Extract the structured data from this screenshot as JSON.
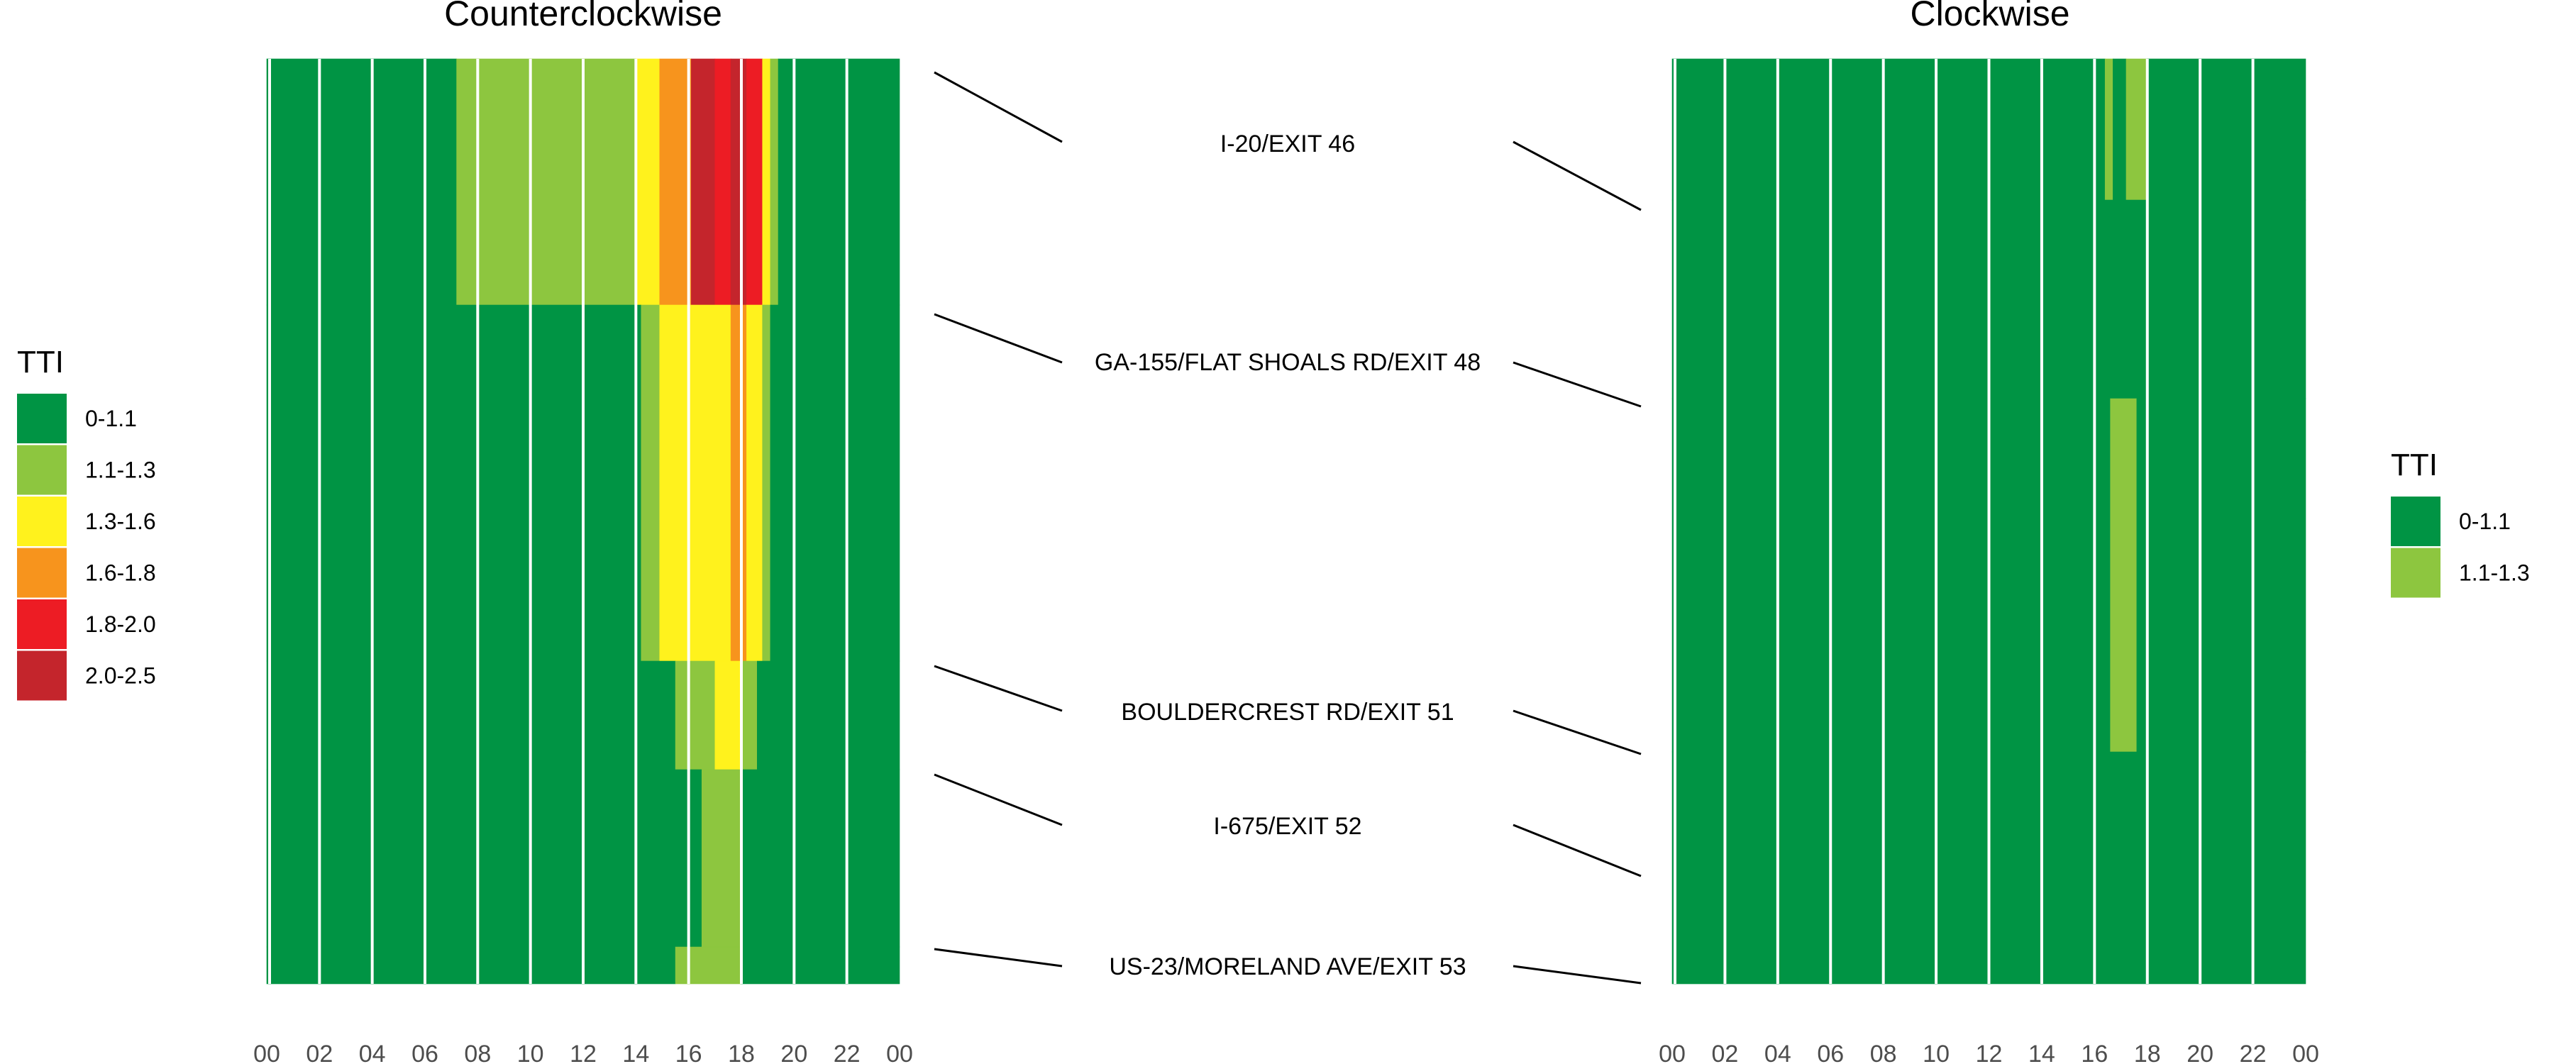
{
  "chart_data": [
    {
      "type": "heatmap",
      "title": "Counterclockwise",
      "xlabel": "",
      "ylabel": "",
      "x_ticks": [
        "00",
        "02",
        "04",
        "06",
        "08",
        "10",
        "12",
        "14",
        "16",
        "18",
        "20",
        "22",
        "00"
      ],
      "xlim": [
        0,
        24
      ],
      "legend": {
        "title": "TTI",
        "position": "left",
        "items": [
          {
            "label": "0-1.1",
            "color": "#009444"
          },
          {
            "label": "1.1-1.3",
            "color": "#8dc63f"
          },
          {
            "label": "1.3-1.6",
            "color": "#fff21d"
          },
          {
            "label": "1.6-1.8",
            "color": "#f7941d"
          },
          {
            "label": "1.8-2.0",
            "color": "#ed1c24"
          },
          {
            "label": "2.0-2.5",
            "color": "#c4252c"
          }
        ]
      },
      "rows": [
        {
          "segment": "I-20/EXIT 46 to GA-155/FLAT SHOALS RD/EXIT 48",
          "cells": [
            [
              0,
              7.2,
              "0-1.1"
            ],
            [
              7.2,
              14.0,
              "1.1-1.3"
            ],
            [
              14.0,
              14.9,
              "1.3-1.6"
            ],
            [
              14.9,
              16.1,
              "1.6-1.8"
            ],
            [
              16.1,
              17.0,
              "2.0-2.5"
            ],
            [
              17.0,
              17.6,
              "1.8-2.0"
            ],
            [
              17.6,
              18.2,
              "2.0-2.5"
            ],
            [
              18.2,
              18.8,
              "1.8-2.0"
            ],
            [
              18.8,
              19.1,
              "1.3-1.6"
            ],
            [
              19.1,
              19.4,
              "1.1-1.3"
            ],
            [
              19.4,
              24,
              "0-1.1"
            ]
          ]
        },
        {
          "segment": "GA-155/FLAT SHOALS RD/EXIT 48 to BOULDERCREST RD/EXIT 51",
          "cells": [
            [
              0,
              14.2,
              "0-1.1"
            ],
            [
              14.2,
              14.9,
              "1.1-1.3"
            ],
            [
              14.9,
              17.6,
              "1.3-1.6"
            ],
            [
              17.6,
              18.2,
              "1.6-1.8"
            ],
            [
              18.2,
              18.8,
              "1.3-1.6"
            ],
            [
              18.8,
              19.1,
              "1.1-1.3"
            ],
            [
              19.1,
              24,
              "0-1.1"
            ]
          ]
        },
        {
          "segment": "BOULDERCREST RD/EXIT 51 to I-675/EXIT 52",
          "cells": [
            [
              0,
              15.5,
              "0-1.1"
            ],
            [
              15.5,
              17.0,
              "1.1-1.3"
            ],
            [
              17.0,
              18.0,
              "1.3-1.6"
            ],
            [
              18.0,
              18.6,
              "1.1-1.3"
            ],
            [
              18.6,
              24,
              "0-1.1"
            ]
          ]
        },
        {
          "segment": "I-675/EXIT 52 to US-23/MORELAND AVE/EXIT 53",
          "cells": [
            [
              0,
              16.5,
              "0-1.1"
            ],
            [
              16.5,
              18.0,
              "1.1-1.3"
            ],
            [
              18.0,
              24,
              "0-1.1"
            ]
          ]
        },
        {
          "segment": "US-23/MORELAND AVE/EXIT 53",
          "cells": [
            [
              0,
              15.5,
              "0-1.1"
            ],
            [
              15.5,
              18.0,
              "1.1-1.3"
            ],
            [
              18.0,
              24,
              "0-1.1"
            ]
          ]
        }
      ]
    },
    {
      "type": "heatmap",
      "title": "Clockwise",
      "xlabel": "",
      "ylabel": "",
      "x_ticks": [
        "00",
        "02",
        "04",
        "06",
        "08",
        "10",
        "12",
        "14",
        "16",
        "18",
        "20",
        "22",
        "00"
      ],
      "xlim": [
        0,
        24
      ],
      "legend": {
        "title": "TTI",
        "position": "right",
        "items": [
          {
            "label": "0-1.1",
            "color": "#009444"
          },
          {
            "label": "1.1-1.3",
            "color": "#8dc63f"
          }
        ]
      },
      "rows": [
        {
          "segment": "I-20/EXIT 46 (upper)",
          "cells": [
            [
              0,
              16.4,
              "0-1.1"
            ],
            [
              16.4,
              16.7,
              "1.1-1.3"
            ],
            [
              16.7,
              17.2,
              "0-1.1"
            ],
            [
              17.2,
              18.0,
              "1.1-1.3"
            ],
            [
              18.0,
              24,
              "0-1.1"
            ]
          ]
        },
        {
          "segment": "between I-20/EXIT 46 and GA-155/FLAT SHOALS RD/EXIT 48",
          "cells": [
            [
              0,
              24,
              "0-1.1"
            ]
          ]
        },
        {
          "segment": "GA-155/FLAT SHOALS RD/EXIT 48 to BOULDERCREST RD/EXIT 51",
          "cells": [
            [
              0,
              16.6,
              "0-1.1"
            ],
            [
              16.6,
              17.6,
              "1.1-1.3"
            ],
            [
              17.6,
              24,
              "0-1.1"
            ]
          ]
        },
        {
          "segment": "below BOULDERCREST RD/EXIT 51",
          "cells": [
            [
              0,
              24,
              "0-1.1"
            ]
          ]
        }
      ]
    }
  ],
  "segments": {
    "labels": [
      "I-20/EXIT 46",
      "GA-155/FLAT SHOALS RD/EXIT 48",
      "BOULDERCREST RD/EXIT 51",
      "I-675/EXIT 52",
      "US-23/MORELAND AVE/EXIT 53"
    ]
  }
}
